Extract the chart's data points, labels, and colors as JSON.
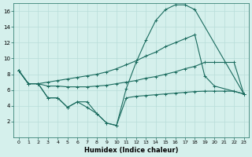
{
  "xlabel": "Humidex (Indice chaleur)",
  "bg_color": "#d5f0ec",
  "line_color": "#1a6b5e",
  "grid_color": "#b8ddd8",
  "xlim": [
    -0.5,
    23.5
  ],
  "ylim": [
    0,
    17
  ],
  "yticks": [
    2,
    4,
    6,
    8,
    10,
    12,
    14,
    16
  ],
  "xticks": [
    0,
    1,
    2,
    3,
    4,
    5,
    6,
    7,
    8,
    9,
    10,
    11,
    12,
    13,
    14,
    15,
    16,
    17,
    18,
    19,
    20,
    21,
    22,
    23
  ],
  "series": [
    {
      "x": [
        0,
        1,
        2,
        3,
        4,
        5,
        6,
        7,
        8,
        9,
        10,
        11,
        12,
        13,
        14,
        15,
        16,
        17,
        18,
        19,
        20,
        21,
        22,
        23
      ],
      "y": [
        8.5,
        6.8,
        6.8,
        5.0,
        5.0,
        3.8,
        4.5,
        3.8,
        3.0,
        1.8,
        1.5,
        5.0,
        5.2,
        5.3,
        5.4,
        5.5,
        5.6,
        5.7,
        5.8,
        5.85,
        5.85,
        5.85,
        5.85,
        5.5
      ]
    },
    {
      "x": [
        0,
        1,
        2,
        3,
        4,
        5,
        6,
        7,
        8,
        9,
        10,
        11,
        12,
        13,
        14,
        15,
        16,
        17,
        18,
        19,
        20,
        21,
        22,
        23
      ],
      "y": [
        8.5,
        6.8,
        6.8,
        6.5,
        6.5,
        6.4,
        6.4,
        6.4,
        6.5,
        6.6,
        6.8,
        7.0,
        7.2,
        7.5,
        7.7,
        8.0,
        8.3,
        8.7,
        9.0,
        9.5,
        9.5,
        9.5,
        9.5,
        5.5
      ]
    },
    {
      "x": [
        0,
        1,
        2,
        3,
        4,
        5,
        6,
        7,
        8,
        9,
        10,
        11,
        12,
        13,
        14,
        15,
        16,
        17,
        18,
        19,
        20,
        21,
        22,
        23
      ],
      "y": [
        8.5,
        6.8,
        6.8,
        7.0,
        7.2,
        7.4,
        7.6,
        7.8,
        8.0,
        8.3,
        8.7,
        9.2,
        9.7,
        10.3,
        10.8,
        11.5,
        12.0,
        12.5,
        13.0,
        7.8,
        6.5,
        null,
        null,
        5.5
      ]
    },
    {
      "x": [
        0,
        1,
        2,
        3,
        4,
        5,
        6,
        7,
        8,
        9,
        10,
        11,
        12,
        13,
        14,
        15,
        16,
        17,
        18,
        23
      ],
      "y": [
        8.5,
        6.8,
        6.8,
        5.0,
        5.0,
        3.8,
        4.5,
        4.5,
        3.0,
        1.8,
        1.5,
        6.2,
        9.5,
        12.3,
        14.8,
        16.2,
        16.8,
        16.8,
        16.2,
        5.5
      ]
    }
  ]
}
